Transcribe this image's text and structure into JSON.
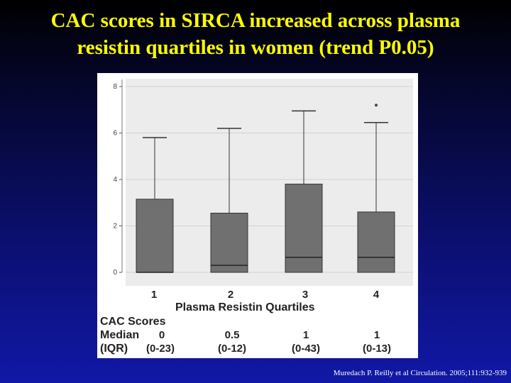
{
  "title": {
    "line1": "CAC scores in SIRCA increased across plasma",
    "line2": "resistin quartiles in women (trend P0.05)"
  },
  "chart_data": {
    "type": "box",
    "xlabel": "Plasma Resistin Quartiles",
    "ylim": [
      0,
      8.3
    ],
    "yticks": [
      0,
      2,
      4,
      6,
      8
    ],
    "yticklabels": [
      "0",
      "2",
      "4",
      "6",
      "8"
    ],
    "categories": [
      "1",
      "2",
      "3",
      "4"
    ],
    "boxes": [
      {
        "q1": 0,
        "median": 0,
        "q3": 3.15,
        "whisker_low": 0,
        "whisker_high": 5.8,
        "outliers": []
      },
      {
        "q1": 0,
        "median": 0.3,
        "q3": 2.55,
        "whisker_low": 0,
        "whisker_high": 6.2,
        "outliers": []
      },
      {
        "q1": 0,
        "median": 0.65,
        "q3": 3.8,
        "whisker_low": 0,
        "whisker_high": 6.95,
        "outliers": []
      },
      {
        "q1": 0,
        "median": 0.65,
        "q3": 2.6,
        "whisker_low": 0,
        "whisker_high": 6.45,
        "outliers": [
          7.2
        ]
      }
    ],
    "grid": true,
    "table": {
      "header": "CAC Scores",
      "rows": [
        {
          "label": "Median",
          "values": [
            "0",
            "0.5",
            "1",
            "1"
          ]
        },
        {
          "label": "(IQR)",
          "values": [
            "(0-23)",
            "(0-12)",
            "(0-43)",
            "(0-13)"
          ]
        }
      ]
    },
    "colors": {
      "box": "#707070",
      "edge": "#333333",
      "background": "#ececec"
    }
  },
  "citation": "Muredach P. Reilly et al Circulation. 2005;111:932-939"
}
